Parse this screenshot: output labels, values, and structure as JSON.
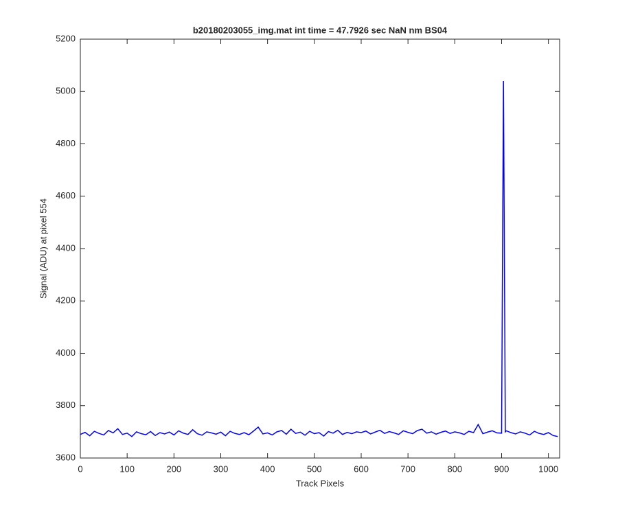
{
  "chart_data": {
    "type": "line",
    "title": "b20180203055_img.mat int time = 47.7926 sec  NaN nm BS04",
    "x_label": "Track Pixels",
    "y_label": "Signal (ADU) at pixel 554",
    "xlim": [
      0,
      1024
    ],
    "ylim": [
      3600,
      5200
    ],
    "xticks": [
      0,
      100,
      200,
      300,
      400,
      500,
      600,
      700,
      800,
      900,
      1000
    ],
    "yticks": [
      3600,
      3800,
      4000,
      4200,
      4400,
      4600,
      4800,
      5000,
      5200
    ],
    "grid": false,
    "x": [
      0,
      10,
      20,
      30,
      40,
      50,
      60,
      70,
      80,
      90,
      100,
      110,
      120,
      130,
      140,
      150,
      160,
      170,
      180,
      190,
      200,
      210,
      220,
      230,
      240,
      250,
      260,
      270,
      280,
      290,
      300,
      310,
      320,
      330,
      340,
      350,
      360,
      370,
      380,
      390,
      400,
      410,
      420,
      430,
      440,
      450,
      460,
      470,
      480,
      490,
      500,
      510,
      520,
      530,
      540,
      550,
      560,
      570,
      580,
      590,
      600,
      610,
      620,
      630,
      640,
      650,
      660,
      670,
      680,
      690,
      700,
      710,
      720,
      730,
      740,
      750,
      760,
      770,
      780,
      790,
      800,
      810,
      820,
      830,
      840,
      850,
      860,
      870,
      880,
      890,
      900,
      904,
      908,
      910,
      920,
      930,
      940,
      950,
      960,
      970,
      980,
      990,
      1000,
      1010,
      1020
    ],
    "series": [
      {
        "color": "#0000ff",
        "values": [
          3690,
          3698,
          3685,
          3702,
          3694,
          3688,
          3705,
          3696,
          3712,
          3690,
          3695,
          3682,
          3700,
          3693,
          3689,
          3701,
          3686,
          3697,
          3692,
          3699,
          3688,
          3704,
          3695,
          3690,
          3708,
          3693,
          3687,
          3700,
          3696,
          3691,
          3699,
          3685,
          3702,
          3694,
          3690,
          3697,
          3689,
          3703,
          3718,
          3692,
          3696,
          3688,
          3700,
          3705,
          3691,
          3710,
          3694,
          3699,
          3687,
          3702,
          3693,
          3697,
          3684,
          3701,
          3695,
          3706,
          3690,
          3698,
          3693,
          3700,
          3697,
          3703,
          3692,
          3699,
          3706,
          3694,
          3701,
          3696,
          3690,
          3704,
          3698,
          3693,
          3705,
          3710,
          3695,
          3700,
          3691,
          3698,
          3703,
          3694,
          3700,
          3696,
          3690,
          3702,
          3697,
          3728,
          3693,
          3699,
          3704,
          3696,
          3695,
          5040,
          3700,
          3704,
          3697,
          3692,
          3700,
          3695,
          3688,
          3702,
          3694,
          3690,
          3697,
          3686,
          3682
        ]
      }
    ]
  }
}
